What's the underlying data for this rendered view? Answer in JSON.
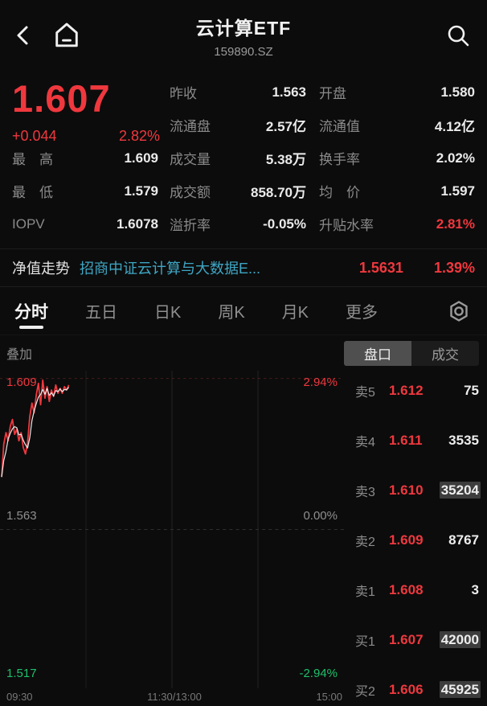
{
  "header": {
    "title": "云计算ETF",
    "code": "159890.SZ",
    "icons": {
      "back": "back-chevron",
      "home": "home-outline",
      "search": "magnifier"
    }
  },
  "quote": {
    "price": "1.607",
    "change": "+0.044",
    "change_pct": "2.82%"
  },
  "stats": {
    "rows": [
      {
        "cells": [
          {
            "label": "昨收",
            "value": "1.563"
          },
          {
            "label": "开盘",
            "value": "1.580"
          }
        ]
      },
      {
        "cells": [
          {
            "label": "流通盘",
            "value": "2.57亿"
          },
          {
            "label": "流通值",
            "value": "4.12亿"
          }
        ]
      },
      {
        "cells": [
          {
            "label": "最　高",
            "value": "1.609"
          },
          {
            "label": "成交量",
            "value": "5.38万"
          },
          {
            "label": "换手率",
            "value": "2.02%"
          }
        ]
      },
      {
        "cells": [
          {
            "label": "最　低",
            "value": "1.579"
          },
          {
            "label": "成交额",
            "value": "858.70万"
          },
          {
            "label": "均　价",
            "value": "1.597"
          }
        ]
      },
      {
        "cells": [
          {
            "label": "IOPV",
            "value": "1.6078"
          },
          {
            "label": "溢折率",
            "value": "-0.05%"
          },
          {
            "label": "升贴水率",
            "value": "2.81%",
            "red": true
          }
        ]
      }
    ]
  },
  "nav_row": {
    "label": "净值走势",
    "fund_name": "招商中证云计算与大数据E...",
    "nav": "1.5631",
    "nav_pct": "1.39%"
  },
  "tabs": {
    "items": [
      "分时",
      "五日",
      "日K",
      "周K",
      "月K",
      "更多"
    ],
    "active_index": 0,
    "gear_icon": "settings-hexagon"
  },
  "chart_header": {
    "overlay_label": "叠加",
    "panel_tabs": [
      {
        "label": "盘口",
        "selected": true
      },
      {
        "label": "成交",
        "selected": false
      }
    ]
  },
  "chart_data": {
    "type": "line",
    "x_ticks": [
      "09:30",
      "11:30/13:00",
      "15:00"
    ],
    "y_max": 1.609,
    "y_min": 1.517,
    "prev_close": 1.563,
    "y_labels": {
      "top_price": "1.609",
      "top_pct": "2.94%",
      "mid_price": "1.563",
      "mid_pct": "0.00%",
      "bottom_price": "1.517",
      "bottom_pct": "-2.94%"
    },
    "x_span_fraction": 0.197,
    "grid": {
      "v_fractions": [
        0.25,
        0.5,
        0.75
      ],
      "mid_line": true,
      "top_line": true
    },
    "series": [
      {
        "name": "price",
        "color": "#ef383e",
        "values": [
          1.579,
          1.589,
          1.5925,
          1.59,
          1.5945,
          1.5965,
          1.592,
          1.5935,
          1.59,
          1.5925,
          1.588,
          1.586,
          1.5895,
          1.5975,
          1.6015,
          1.5985,
          1.604,
          1.6075,
          1.601,
          1.6085,
          1.603,
          1.6065,
          1.602,
          1.6055,
          1.6035,
          1.607,
          1.6045,
          1.606,
          1.6045,
          1.6065,
          1.6055,
          1.607
        ]
      },
      {
        "name": "average",
        "color": "#e8e8e8",
        "derived": "ma3"
      }
    ]
  },
  "order_book": {
    "rows": [
      {
        "side": "卖5",
        "price": "1.612",
        "volume": "75",
        "vol_hl": false
      },
      {
        "side": "卖4",
        "price": "1.611",
        "volume": "3535",
        "vol_hl": false
      },
      {
        "side": "卖3",
        "price": "1.610",
        "volume": "35204",
        "vol_hl": true
      },
      {
        "side": "卖2",
        "price": "1.609",
        "volume": "8767",
        "vol_hl": false
      },
      {
        "side": "卖1",
        "price": "1.608",
        "volume": "3",
        "vol_hl": false
      },
      {
        "side": "买1",
        "price": "1.607",
        "volume": "42000",
        "vol_hl": true
      },
      {
        "side": "买2",
        "price": "1.606",
        "volume": "45925",
        "vol_hl": true
      }
    ]
  },
  "colors": {
    "up": "#ef383e",
    "down": "#1ec06c",
    "link": "#3ea6c4",
    "background": "#0c0c0c",
    "muted": "#8a8a8a",
    "vol_highlight": "#3d3d3d"
  }
}
